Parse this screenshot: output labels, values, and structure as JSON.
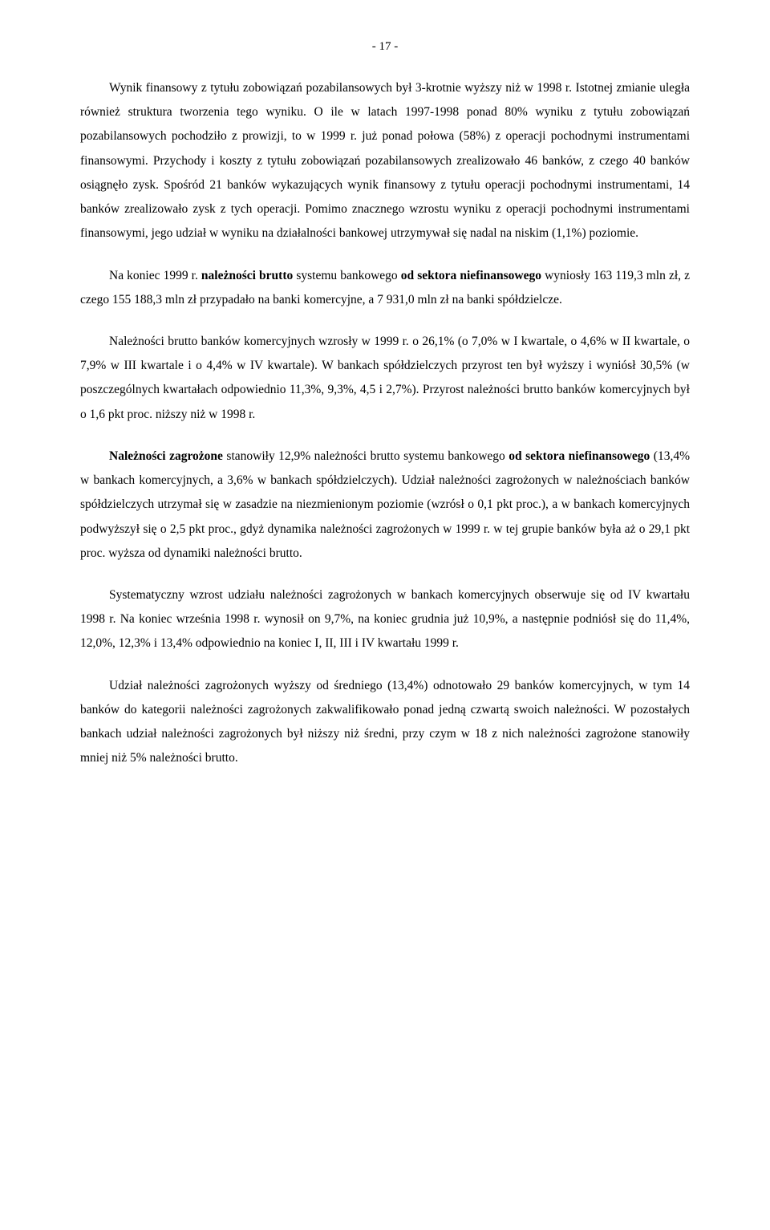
{
  "pageNumber": "- 17 -",
  "paragraphs": {
    "p1_a": "Wynik finansowy z tytułu zobowiązań pozabilansowych był 3-krotnie wyższy niż w 1998 r. Istotnej zmianie uległa również struktura tworzenia tego wyniku. O ile w latach 1997-1998 ponad 80% wyniku z tytułu zobowiązań pozabilansowych pochodziło z prowizji, to w 1999 r. już ponad połowa (58%) z operacji pochodnymi instrumentami finansowymi. Przychody i koszty z tytułu zobowiązań pozabilansowych zrealizowało 46 banków, z czego 40 banków osiągnęło zysk. Spośród 21 banków wykazujących wynik finansowy z tytułu operacji pochodnymi instrumentami, 14 banków zrealizowało zysk z tych operacji. Pomimo znacznego wzrostu wyniku z operacji pochodnymi instrumentami finansowymi, jego udział w wyniku na działalności bankowej utrzymywał się nadal na niskim (1,1%) poziomie.",
    "p2_a": "Na koniec 1999 r. ",
    "p2_b": "należności brutto",
    "p2_c": " systemu bankowego ",
    "p2_d": "od sektora niefinansowego",
    "p2_e": " wyniosły 163 119,3 mln zł, z czego 155 188,3 mln zł przypadało na banki komercyjne, a 7 931,0 mln zł na banki spółdzielcze.",
    "p3_a": "Należności brutto banków komercyjnych wzrosły w 1999 r. o 26,1% (o 7,0% w I kwartale, o 4,6% w II kwartale, o 7,9% w III kwartale i o 4,4% w IV kwartale). W bankach spółdzielczych przyrost ten był wyższy i wyniósł 30,5% (w poszczególnych kwartałach odpowiednio 11,3%, 9,3%, 4,5 i 2,7%). Przyrost należności brutto banków komercyjnych był o 1,6 pkt proc. niższy niż w 1998 r.",
    "p4_a": "Należności zagrożone",
    "p4_b": " stanowiły 12,9% należności brutto systemu bankowego ",
    "p4_c": "od sektora niefinansowego",
    "p4_d": " (13,4% w bankach komercyjnych, a 3,6% w bankach spółdzielczych). Udział należności zagrożonych w należnościach banków spółdzielczych utrzymał się w zasadzie na niezmienionym poziomie (wzrósł o 0,1 pkt proc.), a w bankach komercyjnych podwyższył się o 2,5 pkt proc., gdyż dynamika należności zagrożonych w 1999 r. w tej grupie banków była aż o 29,1 pkt proc. wyższa od dynamiki należności brutto.",
    "p5_a": "Systematyczny wzrost udziału należności zagrożonych w bankach komercyjnych obserwuje się od IV kwartału 1998 r. Na koniec września 1998 r. wynosił on 9,7%, na koniec grudnia już 10,9%, a następnie podniósł się do 11,4%, 12,0%, 12,3% i 13,4% odpowiednio na koniec I, II, III i IV kwartału 1999 r.",
    "p6_a": "Udział należności zagrożonych wyższy od średniego (13,4%) odnotowało 29 banków komercyjnych, w tym 14 banków do kategorii należności zagrożonych zakwalifikowało ponad jedną czwartą swoich należności. W pozostałych bankach udział należności zagrożonych był niższy niż średni, przy czym w 18 z nich należności zagrożone stanowiły mniej niż 5% należności brutto."
  }
}
